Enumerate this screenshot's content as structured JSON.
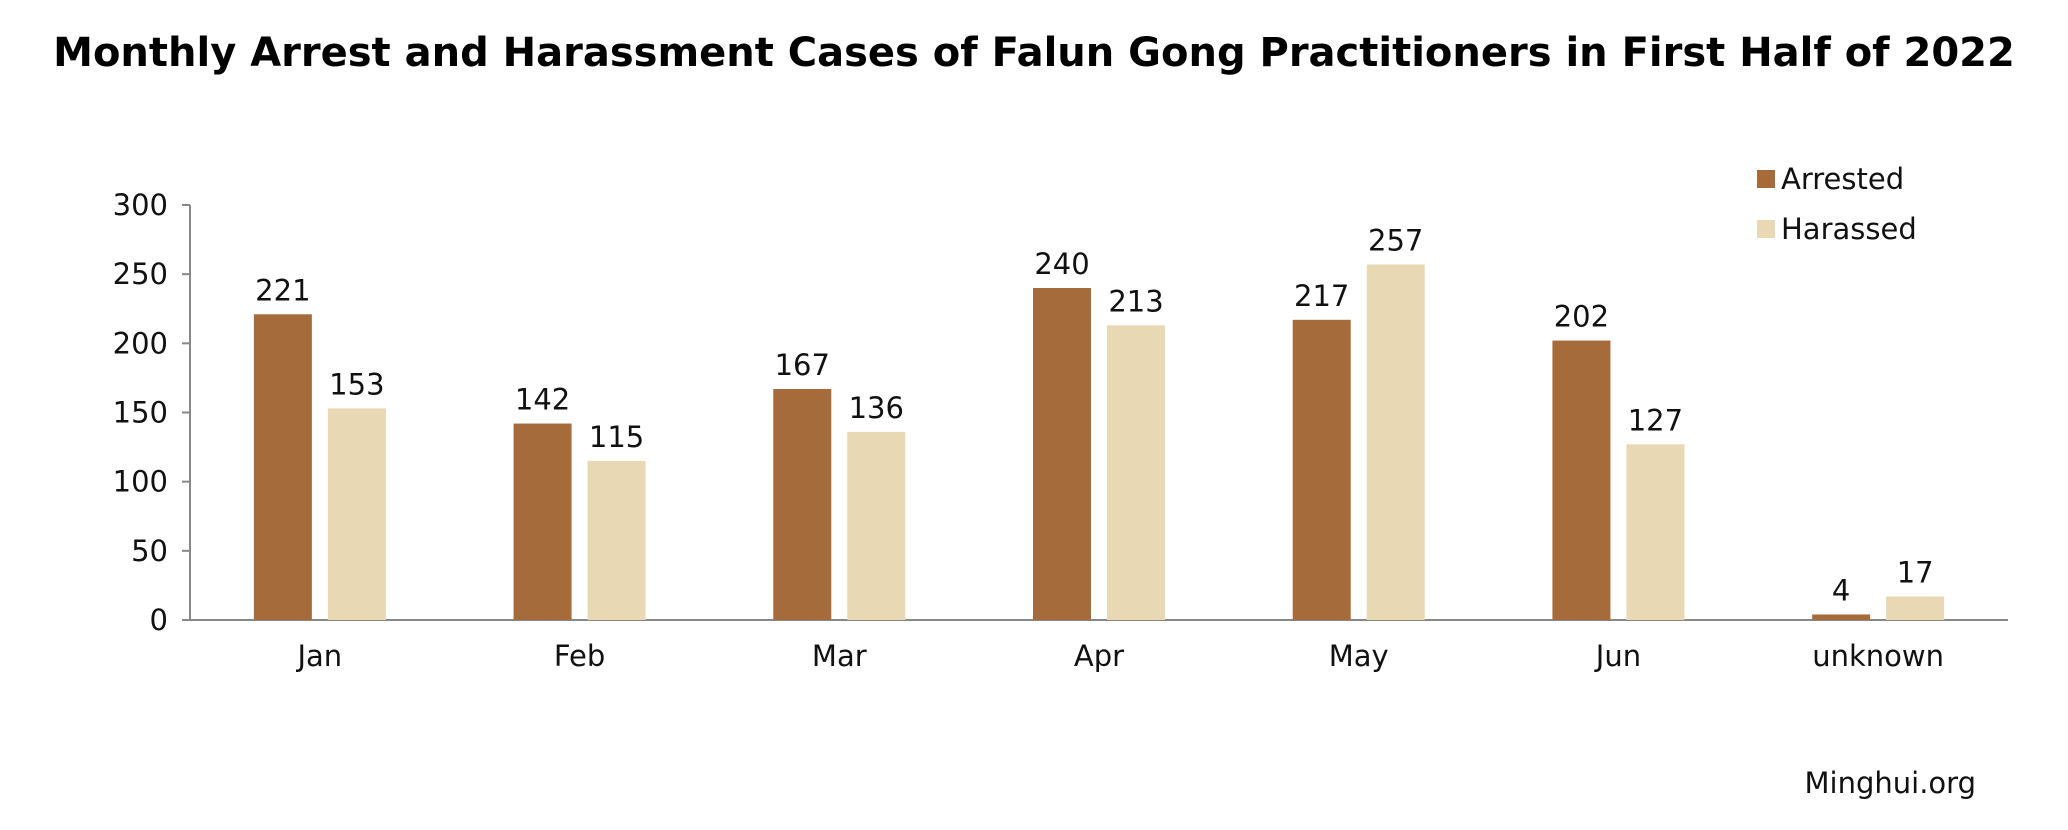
{
  "chart_data": {
    "type": "bar",
    "title": "Monthly Arrest and Harassment Cases of Falun Gong Practitioners in First Half of 2022",
    "categories": [
      "Jan",
      "Feb",
      "Mar",
      "Apr",
      "May",
      "Jun",
      "unknown"
    ],
    "series": [
      {
        "name": "Arrested",
        "color": "#A66B3B",
        "values": [
          221,
          142,
          167,
          240,
          217,
          202,
          4
        ]
      },
      {
        "name": "Harassed",
        "color": "#E8D8B3",
        "values": [
          153,
          115,
          136,
          213,
          257,
          127,
          17
        ]
      }
    ],
    "yticks": [
      0,
      50,
      100,
      150,
      200,
      250,
      300
    ],
    "ylim": [
      0,
      300
    ],
    "xlabel": "",
    "ylabel": "",
    "legend_position": "top-right",
    "grid": false
  },
  "source": "Minghui.org"
}
